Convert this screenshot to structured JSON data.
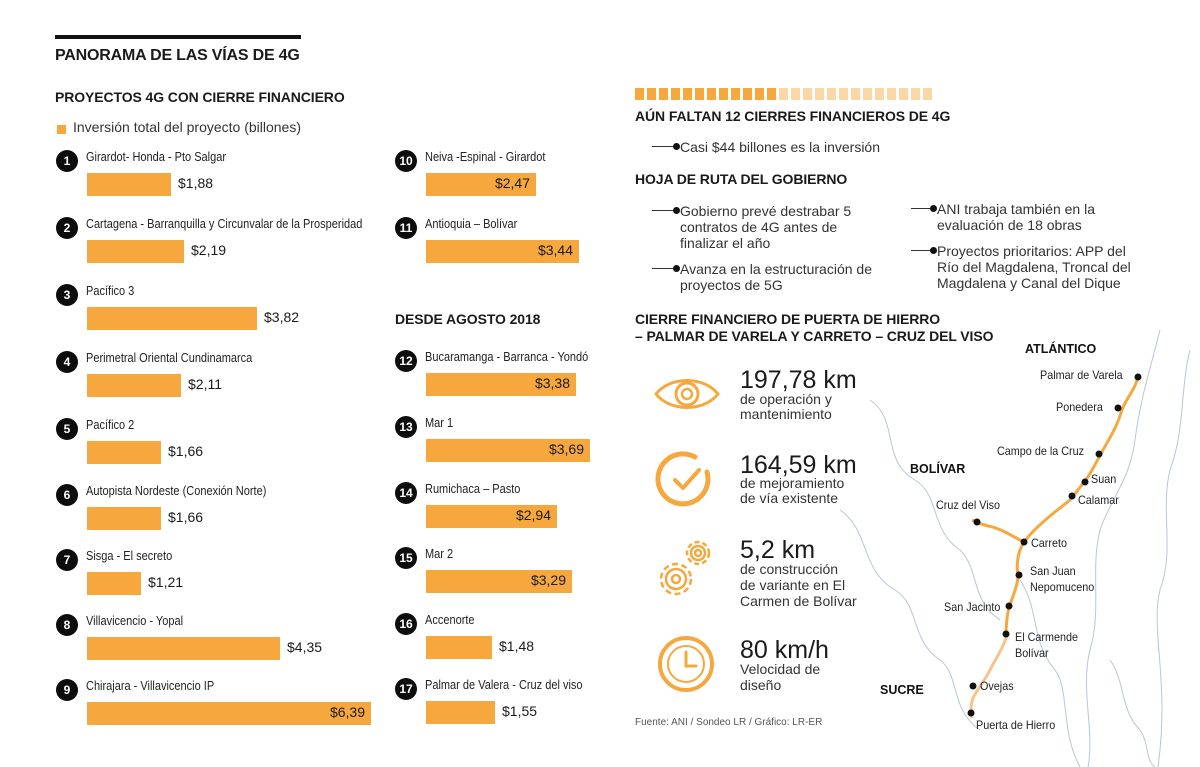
{
  "header": {
    "title": "PANORAMA DE LAS VÍAS DE 4G"
  },
  "left": {
    "title": "PROYECTOS 4G CON CIERRE FINANCIERO",
    "legend": "Inversión total del proyecto (billones)"
  },
  "middle": {
    "subtitle": "DESDE AGOSTO 2018"
  },
  "right": {
    "title": "AÚN FALTAN 12 CIERRES FINANCIEROS DE 4G",
    "bullet_main": "Casi $44 billones es la inversión",
    "roadmap_title": "HOJA DE RUTA DEL GOBIERNO",
    "roadmap": [
      "Gobierno prevé destrabar 5 contratos de 4G antes de finalizar el año",
      "Avanza en la estructuración de proyectos de 5G",
      "ANI trabaja también en la evaluación de 18 obras",
      "Proyectos prioritarios: APP del Río del Magdalena, Troncal del Magdalena y Canal del Dique"
    ],
    "closure_title_1": "CIERRE FINANCIERO DE PUERTA DE HIERRO",
    "closure_title_2": "– PALMAR DE VARELA Y CARRETO – CRUZ DEL VISO",
    "stats": [
      {
        "big": "197,78  km",
        "sub1": "de operación y",
        "sub2": "mantenimiento",
        "sub3": ""
      },
      {
        "big": "164,59 km",
        "sub1": "de mejoramiento",
        "sub2": "de vía existente",
        "sub3": ""
      },
      {
        "big": "5,2 km",
        "sub1": "de construcción",
        "sub2": "de variante en El",
        "sub3": "Carmen de Bolívar"
      },
      {
        "big": "80 km/h",
        "sub1": "Velocidad de",
        "sub2": "diseño",
        "sub3": ""
      }
    ],
    "source": "Fuente: ANI / Sondeo LR / Gráfico: LR-ER"
  },
  "map": {
    "regions": [
      "ATLÁNTICO",
      "BOLÍVAR",
      "SUCRE"
    ],
    "towns": [
      "Palmar de Varela",
      "Ponedera",
      "Campo de la Cruz",
      "Suan",
      "Calamar",
      "Cruz del Viso",
      "Carreto",
      "San Juan",
      "Nepomuceno",
      "San Jacinto",
      "El Carmende",
      "Bolívar",
      "Ovejas",
      "Puerta de Hierro"
    ]
  },
  "colors": {
    "accent": "#f6a83f",
    "accent_light": "#fbd7a6",
    "river": "#b8c6d6"
  },
  "chart_data": {
    "type": "bar",
    "title": "PROYECTOS 4G CON CIERRE FINANCIERO",
    "series_name": "Inversión total del proyecto (billones)",
    "xlim": [
      0,
      6.39
    ],
    "projects": [
      {
        "num": "1",
        "name": "Girardot- Honda - Pto Salgar",
        "value": 1.88,
        "label": "$1,88"
      },
      {
        "num": "2",
        "name": "Cartagena - Barranquilla y Circunvalar de la Prosperidad",
        "value": 2.19,
        "label": "$2,19"
      },
      {
        "num": "3",
        "name": "Pacífico 3",
        "value": 3.82,
        "label": "$3,82"
      },
      {
        "num": "4",
        "name": "Perimetral  Oriental Cundinamarca",
        "value": 2.11,
        "label": "$2,11"
      },
      {
        "num": "5",
        "name": "Pacífico 2",
        "value": 1.66,
        "label": "$1,66"
      },
      {
        "num": "6",
        "name": "Autopista Nordeste (Conexión Norte)",
        "value": 1.66,
        "label": "$1,66"
      },
      {
        "num": "7",
        "name": "Sisga - El secreto",
        "value": 1.21,
        "label": "$1,21"
      },
      {
        "num": "8",
        "name": "Villavicencio - Yopal",
        "value": 4.35,
        "label": "$4,35"
      },
      {
        "num": "9",
        "name": "Chirajara - Villavicencio IP",
        "value": 6.39,
        "label": "$6,39"
      },
      {
        "num": "10",
        "name": "Neiva -Espinal - Girardot",
        "value": 2.47,
        "label": "$2,47"
      },
      {
        "num": "11",
        "name": "Antioquia – Bolívar",
        "value": 3.44,
        "label": "$3,44"
      },
      {
        "num": "12",
        "name": "Bucaramanga - Barranca - Yondó",
        "value": 3.38,
        "label": "$3,38"
      },
      {
        "num": "13",
        "name": "Mar 1",
        "value": 3.69,
        "label": "$3,69"
      },
      {
        "num": "14",
        "name": "Rumichaca – Pasto",
        "value": 2.94,
        "label": "$2,94"
      },
      {
        "num": "15",
        "name": "Mar 2",
        "value": 3.29,
        "label": "$3,29"
      },
      {
        "num": "16",
        "name": "Accenorte",
        "value": 1.48,
        "label": "$1,48"
      },
      {
        "num": "17",
        "name": "Palmar de Valera - Cruz del viso",
        "value": 1.55,
        "label": "$1,55"
      }
    ]
  }
}
